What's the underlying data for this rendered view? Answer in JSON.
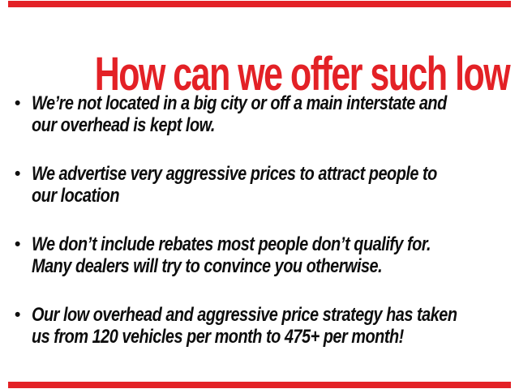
{
  "page": {
    "background": "#ffffff",
    "accent_red": "#e32126",
    "text_black": "#0d0d0d"
  },
  "headline": {
    "text": "How can we offer such low prices?"
  },
  "bullet_marker": "•",
  "bullets": [
    {
      "line1": "We’re not located in a big city or off a main interstate and",
      "line2": "our overhead is kept low."
    },
    {
      "line1": "We advertise very aggressive prices to attract people to",
      "line2": "our location"
    },
    {
      "line1": "We don’t include rebates most people don’t qualify for.",
      "line2": "Many dealers will try to convince you otherwise."
    },
    {
      "line1": "Our low overhead and aggressive price strategy has taken",
      "line2": "us from 120 vehicles per month to 475+ per month!"
    }
  ]
}
